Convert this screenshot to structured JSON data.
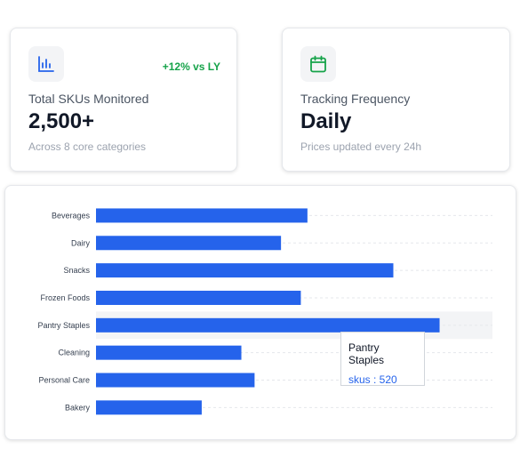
{
  "stats": [
    {
      "icon": "bar-chart-icon",
      "icon_color": "#2563eb",
      "trend": "+12% vs LY",
      "label": "Total SKUs Monitored",
      "value": "2,500+",
      "sub": "Across 8 core categories"
    },
    {
      "icon": "calendar-icon",
      "icon_color": "#16a34a",
      "label": "Tracking Frequency",
      "value": "Daily",
      "sub": "Prices updated every 24h"
    }
  ],
  "chart_data": {
    "type": "bar",
    "orientation": "horizontal",
    "categories": [
      "Beverages",
      "Dairy",
      "Snacks",
      "Frozen Foods",
      "Pantry Staples",
      "Cleaning",
      "Personal Care",
      "Bakery"
    ],
    "series": [
      {
        "name": "skus",
        "values": [
          320,
          280,
          450,
          310,
          520,
          220,
          240,
          160
        ],
        "color": "#2563eb"
      }
    ],
    "xlim": [
      0,
      600
    ],
    "grid": true,
    "highlighted_category": "Pantry Staples"
  },
  "tooltip": {
    "title": "Pantry Staples",
    "value_text": "skus : 520"
  }
}
